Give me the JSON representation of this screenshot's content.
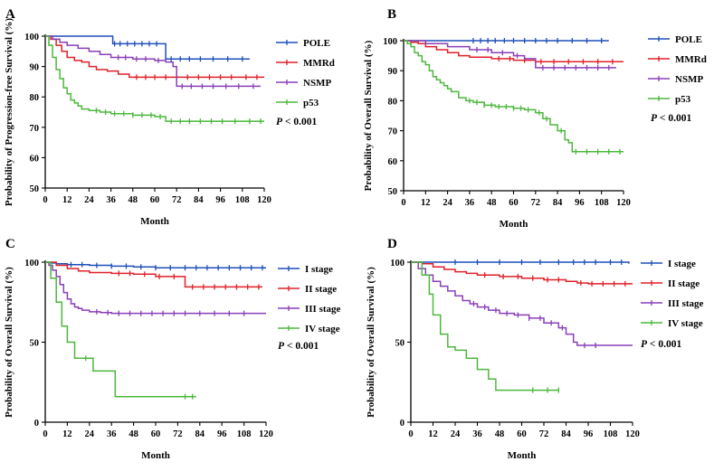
{
  "chart_data": [
    {
      "panel": "A",
      "type": "line",
      "title": "",
      "xlabel": "Month",
      "ylabel": "Probability of Progression-free Survival (%)",
      "xlim": [
        0,
        120
      ],
      "ylim": [
        50,
        100
      ],
      "xticks": [
        0,
        12,
        24,
        36,
        48,
        60,
        72,
        84,
        96,
        108,
        120
      ],
      "yticks": [
        50,
        60,
        70,
        80,
        90,
        100
      ],
      "pvalue": {
        "italic": "P",
        "rest": " < 0.001"
      },
      "series": [
        {
          "name": "POLE",
          "color": "#1f4fb8",
          "x": [
            0,
            36,
            37,
            65,
            66,
            112
          ],
          "y": [
            100,
            100,
            97.5,
            97.5,
            92.5,
            92.5
          ],
          "censor_x": [
            38,
            41,
            45,
            49,
            53,
            57,
            61,
            69,
            74,
            79,
            85,
            92,
            100,
            108
          ]
        },
        {
          "name": "MMRd",
          "color": "#e0202a",
          "x": [
            0,
            3,
            6,
            9,
            12,
            16,
            20,
            24,
            28,
            34,
            40,
            46,
            72,
            120
          ],
          "y": [
            100,
            99,
            97,
            95,
            93,
            92,
            91.5,
            90,
            89,
            88.5,
            87.5,
            86.5,
            86.5,
            86.5
          ],
          "censor_x": [
            50,
            55,
            60,
            66,
            72,
            78,
            84,
            90,
            96,
            102,
            110,
            116
          ]
        },
        {
          "name": "NSMP",
          "color": "#8a3fb8",
          "x": [
            0,
            4,
            8,
            12,
            18,
            24,
            30,
            36,
            48,
            60,
            66,
            70,
            72,
            118
          ],
          "y": [
            100,
            99,
            98,
            97,
            96,
            95,
            94,
            93,
            92.5,
            92,
            91.5,
            90,
            83.5,
            83.5
          ],
          "censor_x": [
            40,
            44,
            50,
            55,
            62,
            75,
            80,
            86,
            92,
            99,
            106,
            114
          ]
        },
        {
          "name": "p53",
          "color": "#4cb83c",
          "x": [
            0,
            2,
            4,
            6,
            8,
            10,
            12,
            14,
            16,
            18,
            20,
            24,
            30,
            36,
            48,
            60,
            66,
            120
          ],
          "y": [
            100,
            97,
            93,
            89,
            86,
            83,
            81,
            79,
            78,
            77,
            76,
            75.5,
            75,
            74.5,
            74,
            73.5,
            72,
            72
          ],
          "censor_x": [
            28,
            33,
            38,
            43,
            48,
            53,
            58,
            63,
            69,
            74,
            79,
            85,
            91,
            97,
            104,
            112,
            118
          ]
        }
      ]
    },
    {
      "panel": "B",
      "type": "line",
      "title": "",
      "xlabel": "Month",
      "ylabel": "Probability of Overall Survival (%)",
      "xlim": [
        0,
        120
      ],
      "ylim": [
        50,
        100
      ],
      "xticks": [
        0,
        12,
        24,
        36,
        48,
        60,
        72,
        84,
        96,
        108,
        120
      ],
      "yticks": [
        50,
        60,
        70,
        80,
        90,
        100
      ],
      "pvalue": {
        "italic": "P",
        "rest": " < 0.001"
      },
      "series": [
        {
          "name": "POLE",
          "color": "#1f4fb8",
          "x": [
            0,
            112
          ],
          "y": [
            100,
            100
          ],
          "censor_x": [
            38,
            42,
            46,
            50,
            55,
            60,
            66,
            72,
            78,
            84,
            92,
            100,
            108
          ]
        },
        {
          "name": "MMRd",
          "color": "#e0202a",
          "x": [
            0,
            4,
            8,
            12,
            18,
            24,
            30,
            36,
            48,
            60,
            72,
            120
          ],
          "y": [
            100,
            99.5,
            99,
            98,
            97,
            96,
            95,
            94.5,
            94,
            93.5,
            93,
            93
          ],
          "censor_x": [
            52,
            58,
            66,
            75,
            82,
            90,
            98,
            106,
            114
          ]
        },
        {
          "name": "NSMP",
          "color": "#8a3fb8",
          "x": [
            0,
            12,
            24,
            36,
            48,
            60,
            66,
            72,
            116
          ],
          "y": [
            100,
            99,
            98,
            97,
            96,
            95,
            94,
            91,
            91
          ],
          "censor_x": [
            40,
            46,
            54,
            62,
            76,
            82,
            88,
            94,
            100,
            106,
            112
          ]
        },
        {
          "name": "p53",
          "color": "#4cb83c",
          "x": [
            0,
            2,
            4,
            6,
            8,
            10,
            12,
            14,
            16,
            18,
            20,
            22,
            24,
            26,
            30,
            34,
            38,
            44,
            50,
            60,
            66,
            72,
            76,
            80,
            84,
            88,
            90,
            92,
            120
          ],
          "y": [
            100,
            99,
            98,
            96,
            95,
            93,
            92,
            90,
            88,
            87,
            86,
            85,
            84,
            83,
            81,
            80,
            79.5,
            78.5,
            78,
            77.5,
            77,
            76,
            74,
            72,
            70,
            67,
            66,
            63,
            63
          ],
          "censor_x": [
            36,
            40,
            44,
            48,
            52,
            56,
            60,
            64,
            68,
            74,
            78,
            86,
            94,
            100,
            106,
            112,
            118
          ]
        }
      ]
    },
    {
      "panel": "C",
      "type": "line",
      "title": "",
      "xlabel": "Month",
      "ylabel": "Probability of Overall Survival (%)",
      "xlim": [
        0,
        120
      ],
      "ylim": [
        0,
        100
      ],
      "xticks": [
        0,
        12,
        24,
        36,
        48,
        60,
        72,
        84,
        96,
        108,
        120
      ],
      "yticks": [
        0,
        50,
        100
      ],
      "pvalue": {
        "italic": "P",
        "rest": " < 0.001"
      },
      "series": [
        {
          "name": "I stage",
          "color": "#1f4fb8",
          "x": [
            0,
            3,
            6,
            12,
            24,
            36,
            48,
            60,
            120
          ],
          "y": [
            100,
            99.5,
            99,
            98.5,
            98,
            97.5,
            97,
            96.5,
            96.5
          ],
          "censor_x": [
            14,
            20,
            28,
            36,
            44,
            52,
            60,
            68,
            76,
            82,
            88,
            94,
            100,
            106,
            112,
            118
          ]
        },
        {
          "name": "II stage",
          "color": "#e0202a",
          "x": [
            0,
            6,
            12,
            18,
            24,
            36,
            48,
            60,
            72,
            76,
            118
          ],
          "y": [
            100,
            98,
            96,
            94.5,
            93.5,
            93,
            92.5,
            91,
            91,
            84.5,
            84.5
          ],
          "censor_x": [
            40,
            46,
            54,
            62,
            70,
            80,
            86,
            92,
            98,
            104,
            110,
            116
          ]
        },
        {
          "name": "III stage",
          "color": "#8a3fb8",
          "x": [
            0,
            2,
            4,
            6,
            8,
            10,
            12,
            14,
            16,
            18,
            20,
            24,
            30,
            36,
            120
          ],
          "y": [
            100,
            98,
            95,
            91,
            86,
            81,
            77,
            74,
            72,
            71,
            70,
            69,
            68.5,
            68,
            68
          ],
          "censor_x": [
            28,
            34,
            40,
            46,
            52,
            58,
            64,
            70,
            76,
            84,
            92,
            100,
            108
          ]
        },
        {
          "name": "IV stage",
          "color": "#4cb83c",
          "x": [
            0,
            3,
            6,
            9,
            12,
            16,
            24,
            26,
            36,
            38,
            82
          ],
          "y": [
            100,
            90,
            75,
            60,
            50,
            40,
            40,
            32,
            32,
            16,
            16
          ],
          "censor_x": [
            22,
            76,
            80
          ]
        }
      ]
    },
    {
      "panel": "D",
      "type": "line",
      "title": "",
      "xlabel": "Month",
      "ylabel": "Probability of Overall Survival (%)",
      "xlim": [
        0,
        120
      ],
      "ylim": [
        0,
        100
      ],
      "xticks": [
        0,
        12,
        24,
        36,
        48,
        60,
        72,
        84,
        96,
        108,
        120
      ],
      "yticks": [
        0,
        50,
        100
      ],
      "pvalue": {
        "italic": "P",
        "rest": " < 0.001"
      },
      "series": [
        {
          "name": "I stage",
          "color": "#1f4fb8",
          "x": [
            0,
            84,
            118
          ],
          "y": [
            100,
            100,
            99
          ],
          "censor_x": [
            24,
            36,
            48,
            60,
            70,
            80,
            88,
            94,
            100,
            108,
            114
          ]
        },
        {
          "name": "II stage",
          "color": "#e0202a",
          "x": [
            0,
            6,
            12,
            18,
            24,
            30,
            36,
            48,
            60,
            72,
            84,
            90,
            96,
            120
          ],
          "y": [
            100,
            99,
            97,
            95.5,
            94,
            93,
            92,
            91,
            90,
            89,
            88,
            87,
            86.5,
            86.5
          ],
          "censor_x": [
            40,
            50,
            58,
            66,
            74,
            80,
            92,
            98,
            104,
            110,
            116
          ]
        },
        {
          "name": "III stage",
          "color": "#8a3fb8",
          "x": [
            0,
            4,
            8,
            12,
            16,
            20,
            24,
            28,
            32,
            36,
            42,
            48,
            56,
            64,
            72,
            80,
            84,
            88,
            90,
            120
          ],
          "y": [
            100,
            96,
            92,
            88,
            85,
            82,
            79,
            76,
            74,
            72,
            70,
            68,
            67,
            65,
            62,
            59,
            55,
            50,
            48,
            48
          ],
          "censor_x": [
            34,
            40,
            46,
            52,
            58,
            64,
            70,
            76,
            82,
            94,
            100
          ]
        },
        {
          "name": "IV stage",
          "color": "#4cb83c",
          "x": [
            0,
            6,
            10,
            12,
            16,
            20,
            24,
            30,
            36,
            42,
            46,
            80
          ],
          "y": [
            100,
            92,
            80,
            67,
            55,
            47,
            45,
            40,
            33,
            27,
            20,
            20
          ],
          "censor_x": [
            66,
            74,
            80
          ]
        }
      ]
    }
  ]
}
